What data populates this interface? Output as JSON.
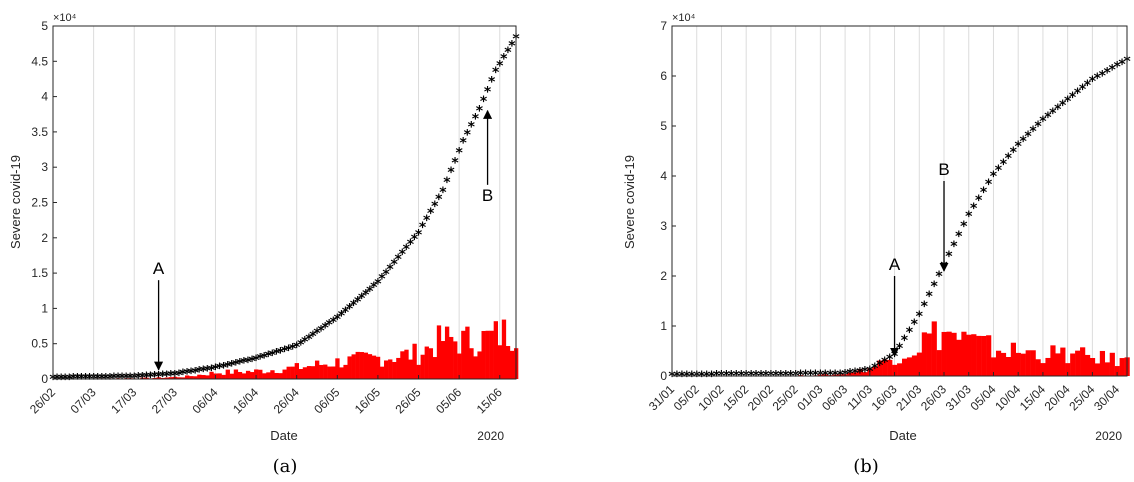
{
  "chart_data": [
    {
      "type": "bar",
      "caption": "(a)",
      "xlabel": "Date",
      "ylabel": "Severe covid-19",
      "year_label": "2020",
      "exponent_label": "×10⁴",
      "y_tick_labels": [
        "0",
        "0.5",
        "1",
        "1.5",
        "2",
        "2.5",
        "3",
        "3.5",
        "4",
        "4.5",
        "5"
      ],
      "x_tick_labels": [
        "26/02",
        "07/03",
        "17/03",
        "27/03",
        "06/04",
        "16/04",
        "26/04",
        "06/05",
        "16/05",
        "26/05",
        "05/06",
        "15/06"
      ],
      "ylim": [
        0,
        50000
      ],
      "x_start_date": "2020-02-26",
      "x_end_date": "2020-06-19",
      "grid": "vertical",
      "bar_series": {
        "color": "#ff0000",
        "control_dates": [
          "2020-02-26",
          "2020-03-22",
          "2020-03-30",
          "2020-04-06",
          "2020-04-16",
          "2020-04-26",
          "2020-05-06",
          "2020-05-16",
          "2020-05-26",
          "2020-06-01",
          "2020-06-06",
          "2020-06-12",
          "2020-06-19"
        ],
        "control_values": [
          0,
          150,
          350,
          900,
          1100,
          1600,
          2400,
          3000,
          3600,
          5600,
          5400,
          5800,
          7000
        ]
      },
      "cumulative_series": {
        "color": "#000000",
        "marker": "asterisk",
        "points": [
          {
            "date": "2020-02-26",
            "value": 0
          },
          {
            "date": "2020-03-17",
            "value": 150
          },
          {
            "date": "2020-03-27",
            "value": 500
          },
          {
            "date": "2020-04-06",
            "value": 1400
          },
          {
            "date": "2020-04-16",
            "value": 2700
          },
          {
            "date": "2020-04-26",
            "value": 4500
          },
          {
            "date": "2020-05-06",
            "value": 8500
          },
          {
            "date": "2020-05-16",
            "value": 13500
          },
          {
            "date": "2020-05-26",
            "value": 20500
          },
          {
            "date": "2020-06-01",
            "value": 26500
          },
          {
            "date": "2020-06-06",
            "value": 33500
          },
          {
            "date": "2020-06-10",
            "value": 38000
          },
          {
            "date": "2020-06-14",
            "value": 43500
          },
          {
            "date": "2020-06-19",
            "value": 48200
          }
        ]
      },
      "annotations": [
        {
          "label": "A",
          "date": "2020-03-23",
          "value_from": 14000,
          "value_to": 1300,
          "direction": "down"
        },
        {
          "label": "B",
          "date": "2020-06-12",
          "value_from": 27500,
          "value_to": 38000,
          "direction": "up"
        }
      ]
    },
    {
      "type": "bar",
      "caption": "(b)",
      "xlabel": "Date",
      "ylabel": "Severe covid-19",
      "year_label": "2020",
      "exponent_label": "×10⁴",
      "y_tick_labels": [
        "0",
        "1",
        "2",
        "3",
        "4",
        "5",
        "6",
        "7"
      ],
      "x_tick_labels": [
        "31/01",
        "05/02",
        "10/02",
        "15/02",
        "20/02",
        "25/02",
        "01/03",
        "06/03",
        "11/03",
        "16/03",
        "21/03",
        "26/03",
        "31/03",
        "05/04",
        "10/04",
        "15/04",
        "20/04",
        "25/04",
        "30/04"
      ],
      "ylim": [
        0,
        70000
      ],
      "x_start_date": "2020-01-31",
      "x_end_date": "2020-05-02",
      "grid": "vertical",
      "bar_series": {
        "color": "#ff0000",
        "control_dates": [
          "2020-02-20",
          "2020-03-05",
          "2020-03-11",
          "2020-03-16",
          "2020-03-20",
          "2020-03-23",
          "2020-03-26",
          "2020-03-31",
          "2020-04-05",
          "2020-04-10",
          "2020-04-15",
          "2020-04-20",
          "2020-04-25",
          "2020-05-02"
        ],
        "control_values": [
          0,
          300,
          1500,
          4000,
          5500,
          8000,
          8800,
          7000,
          5500,
          4800,
          4500,
          4200,
          3800,
          3000
        ]
      },
      "cumulative_series": {
        "color": "#000000",
        "marker": "asterisk",
        "points": [
          {
            "date": "2020-01-31",
            "value": 0
          },
          {
            "date": "2020-03-05",
            "value": 200
          },
          {
            "date": "2020-03-11",
            "value": 1000
          },
          {
            "date": "2020-03-16",
            "value": 4000
          },
          {
            "date": "2020-03-21",
            "value": 12000
          },
          {
            "date": "2020-03-26",
            "value": 22000
          },
          {
            "date": "2020-03-31",
            "value": 32000
          },
          {
            "date": "2020-04-05",
            "value": 40000
          },
          {
            "date": "2020-04-10",
            "value": 46000
          },
          {
            "date": "2020-04-15",
            "value": 51000
          },
          {
            "date": "2020-04-20",
            "value": 55000
          },
          {
            "date": "2020-04-25",
            "value": 59000
          },
          {
            "date": "2020-05-02",
            "value": 63000
          }
        ]
      },
      "annotations": [
        {
          "label": "A",
          "date": "2020-03-16",
          "value_from": 20000,
          "value_to": 4000,
          "direction": "down"
        },
        {
          "label": "B",
          "date": "2020-03-26",
          "value_from": 39000,
          "value_to": 21000,
          "direction": "down"
        }
      ]
    }
  ]
}
